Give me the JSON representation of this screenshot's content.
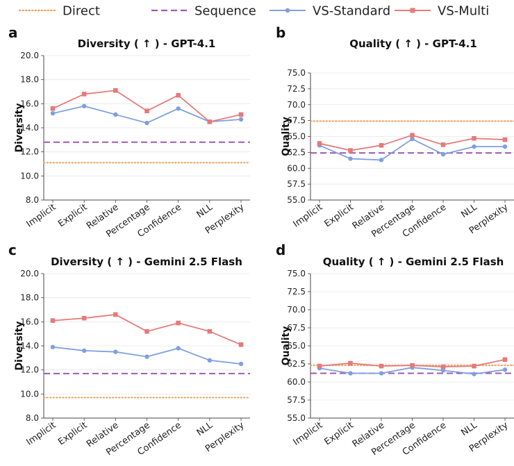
{
  "legend": {
    "items": [
      {
        "label": "Direct",
        "color": "#F0A15E",
        "style": "dotted"
      },
      {
        "label": "Sequence",
        "color": "#9B59B6",
        "style": "dashed"
      },
      {
        "label": "VS-Standard",
        "color": "#7E9FE0",
        "style": "line-circle"
      },
      {
        "label": "VS-Multi",
        "color": "#E57A7A",
        "style": "line-square"
      }
    ]
  },
  "chart_data": [
    {
      "panel": "a",
      "type": "line",
      "title": "Diversity ( ↑ ) - GPT-4.1",
      "ylabel": "Diversity",
      "ylim": [
        8,
        20
      ],
      "yticks": [
        "8.0",
        "10.0",
        "12.0",
        "14.0",
        "16.0",
        "18.0",
        "20.0"
      ],
      "categories": [
        "Implicit",
        "Explicit",
        "Relative",
        "Percentage",
        "Confidence",
        "NLL",
        "Perplexity"
      ],
      "baselines": [
        {
          "name": "Direct",
          "value": 11.1
        },
        {
          "name": "Sequence",
          "value": 12.8
        }
      ],
      "series": [
        {
          "name": "VS-Standard",
          "values": [
            15.2,
            15.8,
            15.1,
            14.4,
            15.6,
            14.5,
            14.7
          ]
        },
        {
          "name": "VS-Multi",
          "values": [
            15.6,
            16.8,
            17.1,
            15.4,
            16.7,
            14.5,
            15.1
          ]
        }
      ]
    },
    {
      "panel": "b",
      "type": "line",
      "title": "Quality ( ↑ ) - GPT-4.1",
      "ylabel": "Quality",
      "ylim": [
        55,
        75
      ],
      "yticks": [
        "55.0",
        "57.5",
        "60.0",
        "62.5",
        "65.0",
        "67.5",
        "70.0",
        "72.5",
        "75.0"
      ],
      "categories": [
        "Implicit",
        "Explicit",
        "Relative",
        "Percentage",
        "Confidence",
        "NLL",
        "Perplexity"
      ],
      "baselines": [
        {
          "name": "Direct",
          "value": 67.4
        },
        {
          "name": "Sequence",
          "value": 62.4
        }
      ],
      "series": [
        {
          "name": "VS-Standard",
          "values": [
            63.6,
            61.5,
            61.3,
            64.6,
            62.2,
            63.4,
            63.4
          ]
        },
        {
          "name": "VS-Multi",
          "values": [
            63.9,
            62.8,
            63.6,
            65.2,
            63.7,
            64.7,
            64.5
          ]
        }
      ]
    },
    {
      "panel": "c",
      "type": "line",
      "title": "Diversity ( ↑ ) - Gemini 2.5 Flash",
      "ylabel": "Diversity",
      "ylim": [
        8,
        20
      ],
      "yticks": [
        "8.0",
        "10.0",
        "12.0",
        "14.0",
        "16.0",
        "18.0",
        "20.0"
      ],
      "categories": [
        "Implicit",
        "Explicit",
        "Relative",
        "Percentage",
        "Confidence",
        "NLL",
        "Perplexity"
      ],
      "baselines": [
        {
          "name": "Direct",
          "value": 9.7
        },
        {
          "name": "Sequence",
          "value": 11.7
        }
      ],
      "series": [
        {
          "name": "VS-Standard",
          "values": [
            13.9,
            13.6,
            13.5,
            13.1,
            13.8,
            12.8,
            12.5
          ]
        },
        {
          "name": "VS-Multi",
          "values": [
            16.1,
            16.3,
            16.6,
            15.2,
            15.9,
            15.2,
            14.1
          ]
        }
      ]
    },
    {
      "panel": "d",
      "type": "line",
      "title": "Quality ( ↑ ) - Gemini 2.5 Flash",
      "ylabel": "Quality",
      "ylim": [
        55,
        75
      ],
      "yticks": [
        "55.0",
        "57.5",
        "60.0",
        "62.5",
        "65.0",
        "67.5",
        "70.0",
        "72.5",
        "75.0"
      ],
      "categories": [
        "Implicit",
        "Explicit",
        "Relative",
        "Percentage",
        "Confidence",
        "NLL",
        "Perplexity"
      ],
      "baselines": [
        {
          "name": "Direct",
          "value": 62.3
        },
        {
          "name": "Sequence",
          "value": 61.2
        }
      ],
      "series": [
        {
          "name": "VS-Standard",
          "values": [
            61.9,
            61.2,
            61.2,
            62.0,
            61.6,
            61.1,
            61.7
          ]
        },
        {
          "name": "VS-Multi",
          "values": [
            62.2,
            62.6,
            62.2,
            62.3,
            62.1,
            62.2,
            63.1
          ]
        }
      ]
    }
  ]
}
